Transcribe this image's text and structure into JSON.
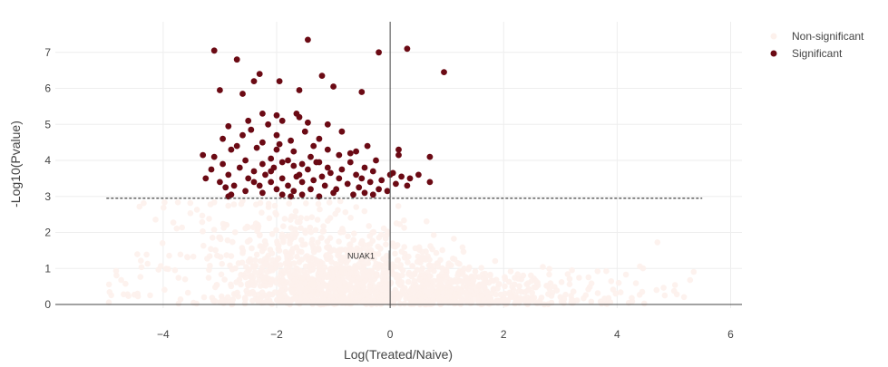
{
  "chart_data": {
    "type": "scatter",
    "xlabel": "Log(Treated/Naive)",
    "ylabel": "-Log10(Pvalue)",
    "xlim": [
      -5.9,
      6.2
    ],
    "ylim": [
      -0.1,
      7.85
    ],
    "x_ticks": [
      -4,
      -2,
      0,
      2,
      4,
      6
    ],
    "x_tick_labels": [
      "−4",
      "−2",
      "0",
      "2",
      "4",
      "6"
    ],
    "y_ticks": [
      0,
      1,
      2,
      3,
      4,
      5,
      6,
      7
    ],
    "y_tick_labels": [
      "0",
      "1",
      "2",
      "3",
      "4",
      "5",
      "6",
      "7"
    ],
    "grid": true,
    "legend_position": "top-right",
    "threshold_line": {
      "y": 2.95,
      "x_from": -5.0,
      "x_to": 5.5,
      "style": "dashed"
    },
    "annotation": {
      "text": "NUAK1",
      "x": -0.05,
      "y": 1.35,
      "arrow_to_y": 0.95
    },
    "series": [
      {
        "name": "Non-significant",
        "color": "#fdf1ec",
        "description_generation": "dense cloud below y=3, generated in script"
      },
      {
        "name": "Significant",
        "color": "#6b0a14",
        "points": [
          [
            -3.1,
            7.05
          ],
          [
            -1.45,
            7.35
          ],
          [
            -0.2,
            7.0
          ],
          [
            0.3,
            7.1
          ],
          [
            -2.7,
            6.8
          ],
          [
            0.95,
            6.45
          ],
          [
            -2.3,
            6.4
          ],
          [
            -1.2,
            6.35
          ],
          [
            -2.4,
            6.2
          ],
          [
            -1.95,
            6.2
          ],
          [
            -1.0,
            6.05
          ],
          [
            -3.0,
            5.95
          ],
          [
            -2.6,
            5.85
          ],
          [
            -1.6,
            5.95
          ],
          [
            -0.5,
            5.9
          ],
          [
            -1.65,
            5.3
          ],
          [
            -2.25,
            5.3
          ],
          [
            -2.0,
            5.25
          ],
          [
            -1.6,
            5.2
          ],
          [
            -2.5,
            5.1
          ],
          [
            -1.45,
            5.05
          ],
          [
            -1.1,
            5.0
          ],
          [
            -2.15,
            5.0
          ],
          [
            -1.9,
            5.1
          ],
          [
            -2.85,
            4.95
          ],
          [
            -2.45,
            4.85
          ],
          [
            -2.0,
            4.7
          ],
          [
            -1.5,
            4.8
          ],
          [
            -1.25,
            4.6
          ],
          [
            -0.85,
            4.8
          ],
          [
            -2.6,
            4.7
          ],
          [
            -2.95,
            4.6
          ],
          [
            -1.75,
            4.55
          ],
          [
            -2.25,
            4.5
          ],
          [
            -1.95,
            4.45
          ],
          [
            -1.35,
            4.4
          ],
          [
            -0.4,
            4.4
          ],
          [
            0.15,
            4.3
          ],
          [
            -2.8,
            4.3
          ],
          [
            -2.35,
            4.35
          ],
          [
            -1.1,
            4.3
          ],
          [
            -0.6,
            4.25
          ],
          [
            -1.7,
            4.25
          ],
          [
            -2.0,
            4.3
          ],
          [
            0.7,
            4.1
          ],
          [
            -3.3,
            4.15
          ],
          [
            -3.1,
            4.1
          ],
          [
            -2.1,
            4.05
          ],
          [
            -1.4,
            4.1
          ],
          [
            -0.9,
            4.15
          ],
          [
            0.15,
            4.15
          ],
          [
            -2.55,
            4.0
          ],
          [
            -1.9,
            3.95
          ],
          [
            -1.55,
            3.9
          ],
          [
            -1.25,
            3.95
          ],
          [
            -0.7,
            3.95
          ],
          [
            -0.25,
            4.0
          ],
          [
            -2.95,
            3.9
          ],
          [
            -2.25,
            3.9
          ],
          [
            -1.7,
            3.85
          ],
          [
            -0.45,
            3.8
          ],
          [
            -3.15,
            3.75
          ],
          [
            -2.65,
            3.8
          ],
          [
            -2.05,
            3.8
          ],
          [
            -1.45,
            3.75
          ],
          [
            -0.85,
            3.75
          ],
          [
            -2.4,
            3.7
          ],
          [
            -1.05,
            3.65
          ],
          [
            -0.3,
            3.7
          ],
          [
            0.05,
            3.65
          ],
          [
            0.5,
            3.6
          ],
          [
            -2.85,
            3.6
          ],
          [
            -2.2,
            3.6
          ],
          [
            -1.65,
            3.55
          ],
          [
            -1.2,
            3.55
          ],
          [
            -0.6,
            3.6
          ],
          [
            0.2,
            3.55
          ],
          [
            -3.25,
            3.5
          ],
          [
            -2.5,
            3.5
          ],
          [
            -1.9,
            3.5
          ],
          [
            -1.35,
            3.45
          ],
          [
            -0.9,
            3.5
          ],
          [
            -0.15,
            3.45
          ],
          [
            0.35,
            3.5
          ],
          [
            -3.0,
            3.4
          ],
          [
            -2.1,
            3.4
          ],
          [
            -1.55,
            3.4
          ],
          [
            -0.75,
            3.35
          ],
          [
            -0.35,
            3.4
          ],
          [
            0.1,
            3.35
          ],
          [
            0.7,
            3.4
          ],
          [
            -2.75,
            3.3
          ],
          [
            -2.3,
            3.3
          ],
          [
            -1.8,
            3.3
          ],
          [
            -1.15,
            3.3
          ],
          [
            -0.55,
            3.25
          ],
          [
            0.3,
            3.3
          ],
          [
            -2.9,
            3.25
          ],
          [
            -2.0,
            3.2
          ],
          [
            -1.4,
            3.2
          ],
          [
            -0.95,
            3.2
          ],
          [
            -0.2,
            3.2
          ],
          [
            -2.55,
            3.15
          ],
          [
            -1.7,
            3.15
          ],
          [
            -1.0,
            3.1
          ],
          [
            -0.45,
            3.1
          ],
          [
            -0.05,
            3.15
          ],
          [
            -2.25,
            3.1
          ],
          [
            -1.55,
            3.05
          ],
          [
            -0.65,
            3.05
          ],
          [
            -2.8,
            3.05
          ],
          [
            -1.9,
            3.05
          ],
          [
            -1.25,
            3.0
          ],
          [
            -2.85,
            3.0
          ],
          [
            -1.75,
            3.0
          ],
          [
            -0.3,
            3.05
          ],
          [
            -2.4,
            3.4
          ],
          [
            -1.6,
            3.6
          ],
          [
            -1.1,
            3.8
          ],
          [
            -0.5,
            3.5
          ],
          [
            -2.7,
            4.4
          ],
          [
            -1.8,
            4.0
          ],
          [
            -1.3,
            3.95
          ],
          [
            -0.7,
            4.2
          ],
          [
            -2.1,
            3.7
          ],
          [
            0.0,
            3.6
          ]
        ]
      }
    ]
  }
}
